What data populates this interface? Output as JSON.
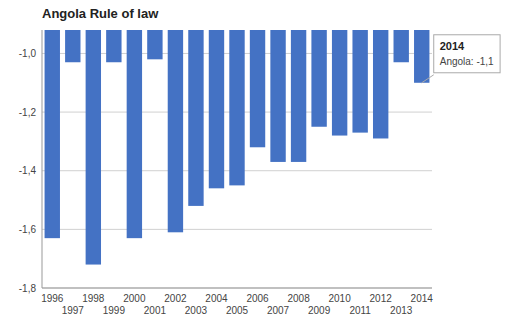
{
  "chart_data": {
    "type": "bar",
    "title": "Angola Rule of law",
    "categories": [
      "1996",
      "1997",
      "1998",
      "1999",
      "2000",
      "2001",
      "2002",
      "2003",
      "2004",
      "2005",
      "2006",
      "2007",
      "2008",
      "2009",
      "2010",
      "2011",
      "2012",
      "2013",
      "2014"
    ],
    "values": [
      -1.63,
      -1.03,
      -1.72,
      -1.03,
      -1.63,
      -1.02,
      -1.61,
      -1.52,
      -1.46,
      -1.45,
      -1.32,
      -1.37,
      -1.37,
      -1.25,
      -1.28,
      -1.27,
      -1.29,
      -1.03,
      -1.1
    ],
    "color": "#4472C4",
    "ylim": [
      -1.8,
      -0.92
    ],
    "yticks": [
      {
        "value": -1.0,
        "label": "-1,0"
      },
      {
        "value": -1.2,
        "label": "-1,2"
      },
      {
        "value": -1.4,
        "label": "-1,4"
      },
      {
        "value": -1.6,
        "label": "-1,6"
      },
      {
        "value": -1.8,
        "label": "-1,8"
      }
    ],
    "grid": true,
    "annotations": [
      {
        "category": "2014",
        "value": -1.1,
        "title": "2014",
        "text": "Angola: -1,1"
      }
    ]
  }
}
